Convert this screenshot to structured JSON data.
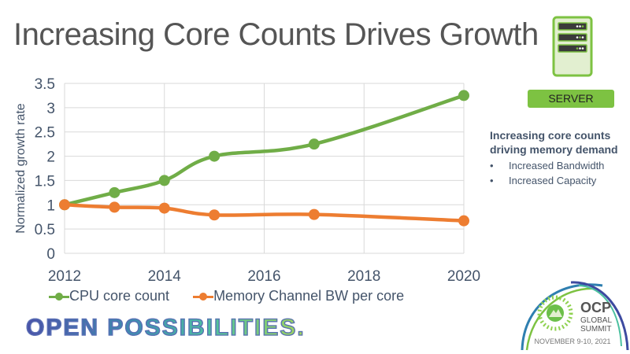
{
  "title": "Increasing Core Counts Drives Growth",
  "server": {
    "icon": "server-icon",
    "label": "SERVER"
  },
  "side_panel": {
    "heading": "Increasing core counts driving memory demand",
    "bullets": [
      "Increased Bandwidth",
      "Increased Capacity"
    ],
    "bullet_glyph": "•"
  },
  "tagline": "OPEN POSSIBILITIES.",
  "event_logo": {
    "name_line1": "OCP",
    "name_line2": "GLOBAL",
    "name_line3": "SUMMIT",
    "date": "NOVEMBER 9-10, 2021"
  },
  "colors": {
    "green": "#70ad47",
    "orange": "#ed7d31",
    "axis_text": "#44546a",
    "grid": "#d9d9d9"
  },
  "chart_data": {
    "type": "line",
    "title": "",
    "xlabel": "",
    "ylabel": "Normalized growth rate",
    "xlim": [
      2012,
      2020
    ],
    "ylim": [
      0,
      3.5
    ],
    "xticks": [
      2012,
      2014,
      2016,
      2018,
      2020
    ],
    "yticks": [
      0,
      0.5,
      1,
      1.5,
      2,
      2.5,
      3,
      3.5
    ],
    "ytick_labels": [
      "0",
      "0.5",
      "1",
      "1.5",
      "2",
      "2.5",
      "3",
      "3.5"
    ],
    "grid": true,
    "smooth": true,
    "legend_position": "bottom",
    "series": [
      {
        "name": "CPU core count",
        "color": "#70ad47",
        "x": [
          2012,
          2013,
          2014,
          2015,
          2017,
          2020
        ],
        "values": [
          1.0,
          1.25,
          1.5,
          2.0,
          2.25,
          3.25
        ]
      },
      {
        "name": "Memory Channel BW per core",
        "color": "#ed7d31",
        "x": [
          2012,
          2013,
          2014,
          2015,
          2017,
          2020
        ],
        "values": [
          1.0,
          0.95,
          0.93,
          0.79,
          0.8,
          0.67
        ]
      }
    ]
  }
}
